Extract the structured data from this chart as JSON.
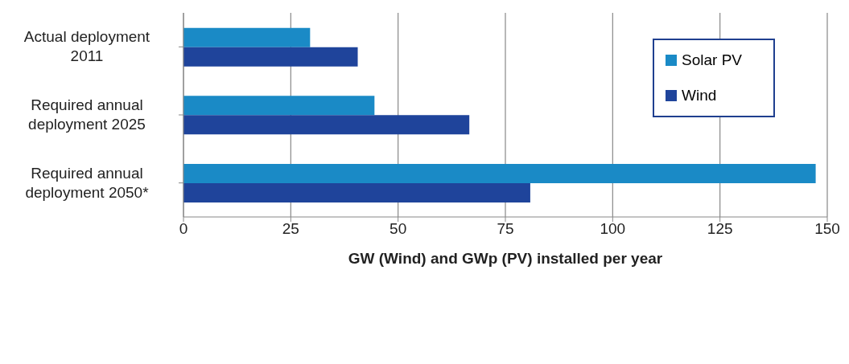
{
  "chart_data": {
    "type": "bar",
    "orientation": "horizontal",
    "xlabel": "GW (Wind) and GWp (PV)  installed per year",
    "categories": [
      "Actual deployment 2011",
      "Required annual deployment 2025",
      "Required annual deployment 2050*"
    ],
    "series": [
      {
        "name": "Solar PV",
        "color": "#1a8ac6",
        "values": [
          29.5,
          44.5,
          147.3
        ]
      },
      {
        "name": "Wind",
        "color": "#1f449b",
        "values": [
          40.6,
          66.6,
          80.8
        ]
      }
    ],
    "xlim": [
      0,
      150
    ],
    "xticks": [
      0,
      25,
      50,
      75,
      100,
      125,
      150
    ],
    "grid": "x",
    "legend": "top right"
  }
}
